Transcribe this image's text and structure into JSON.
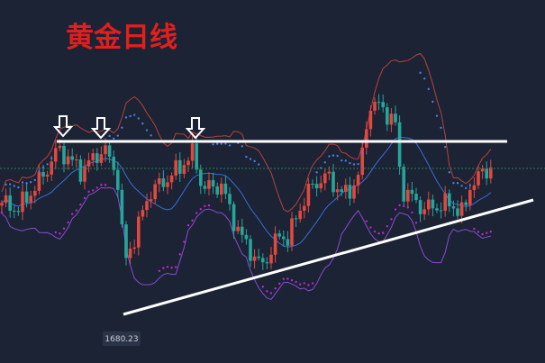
{
  "header": {
    "title": "黄金日线"
  },
  "chart": {
    "low_label": "1680.23"
  }
}
